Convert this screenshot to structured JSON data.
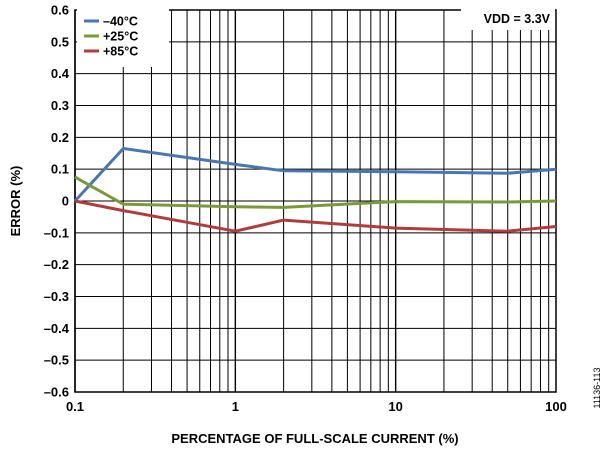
{
  "chart_data": {
    "type": "line",
    "xscale": "log",
    "xlim": [
      0.1,
      100
    ],
    "ylim": [
      -0.6,
      0.6
    ],
    "xlabel": "PERCENTAGE OF FULL-SCALE CURRENT (%)",
    "ylabel": "ERROR (%)",
    "x_tick_labels": [
      "0.1",
      "1",
      "10",
      "100"
    ],
    "y_tick_labels": [
      "0.6",
      "0.5",
      "0.4",
      "0.3",
      "0.2",
      "0.1",
      "0",
      "–0.1",
      "–0.2",
      "–0.3",
      "–0.4",
      "–0.5",
      "–0.6"
    ],
    "grid": true,
    "legend_position": "top-left",
    "annotation": "VDD = 3.3V",
    "figure_id": "11136-113",
    "series": [
      {
        "name": "–40°C",
        "color": "#4a76b0",
        "x": [
          0.1,
          0.2,
          1,
          2,
          10,
          50,
          100
        ],
        "y": [
          0.0,
          0.165,
          0.115,
          0.095,
          0.092,
          0.087,
          0.1
        ]
      },
      {
        "name": "+25°C",
        "color": "#7a9a3a",
        "x": [
          0.1,
          0.2,
          1,
          2,
          10,
          50,
          100
        ],
        "y": [
          0.075,
          -0.01,
          -0.018,
          -0.02,
          -0.002,
          -0.003,
          0.0
        ]
      },
      {
        "name": "+85°C",
        "color": "#b03c3c",
        "x": [
          0.1,
          0.2,
          1,
          2,
          10,
          50,
          100
        ],
        "y": [
          0.0,
          -0.03,
          -0.095,
          -0.06,
          -0.085,
          -0.095,
          -0.08
        ]
      }
    ]
  }
}
